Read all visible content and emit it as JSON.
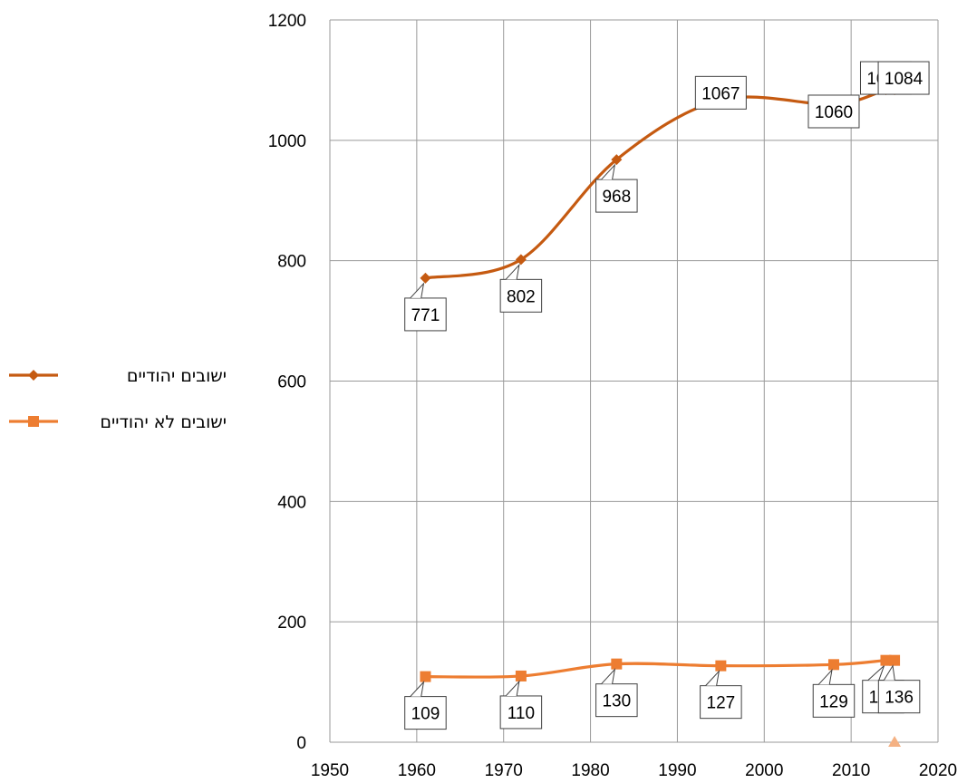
{
  "chart_data": {
    "type": "scatter",
    "title": "",
    "xlabel": "",
    "ylabel": "",
    "xlim": [
      1950,
      2020
    ],
    "ylim": [
      0,
      1200
    ],
    "x_ticks": [
      1950,
      1960,
      1970,
      1980,
      1990,
      2000,
      2010,
      2020
    ],
    "y_ticks": [
      0,
      200,
      400,
      600,
      800,
      1000,
      1200
    ],
    "grid": true,
    "legend_position": "left",
    "series": [
      {
        "name": "ישובים יהודיים",
        "color": "#C55A11",
        "marker": "diamond",
        "smooth": true,
        "x": [
          1961,
          1972,
          1983,
          1995,
          2008,
          2014,
          2015
        ],
        "y": [
          771,
          802,
          968,
          1067,
          1060,
          1084,
          1084
        ],
        "labels": [
          "771",
          "802",
          "968",
          "1067",
          "1060",
          "1084",
          "1084"
        ]
      },
      {
        "name": "ישובים לא יהודיים",
        "color": "#ED7D31",
        "marker": "square",
        "smooth": true,
        "x": [
          1961,
          1972,
          1983,
          1995,
          2008,
          2014,
          2015
        ],
        "y": [
          109,
          110,
          130,
          127,
          129,
          136,
          136
        ],
        "labels": [
          "109",
          "110",
          "130",
          "127",
          "129",
          "136",
          "136"
        ]
      }
    ],
    "extra_marker": {
      "shape": "triangle",
      "color": "#F4B183",
      "x": 2015,
      "y": 0
    }
  }
}
